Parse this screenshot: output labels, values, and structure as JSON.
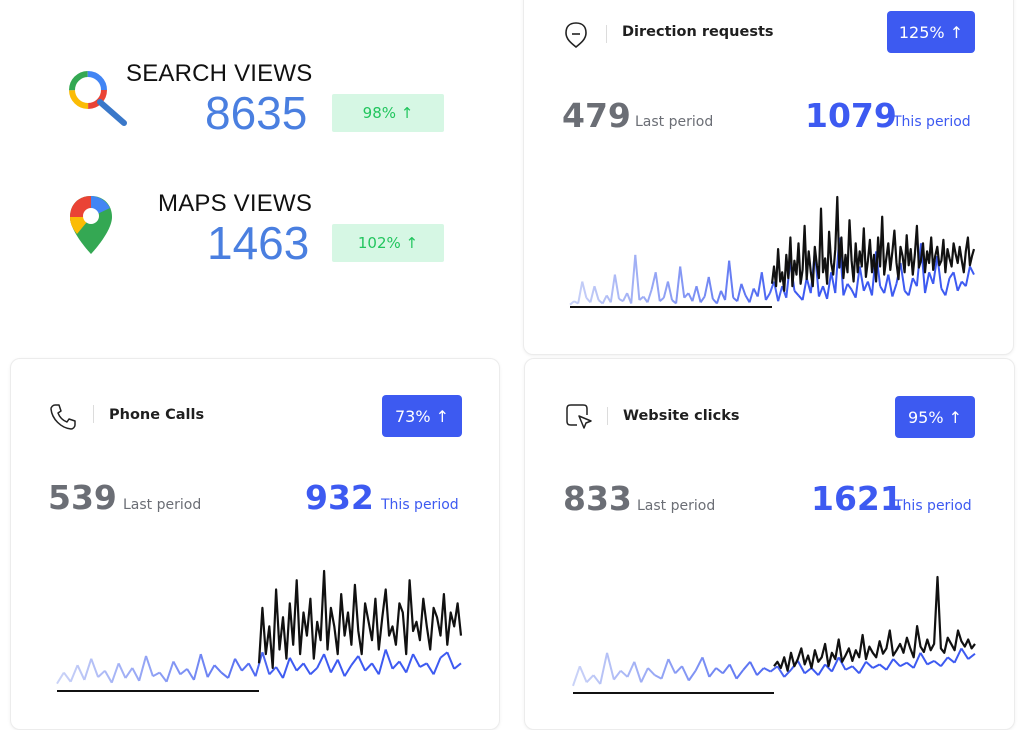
{
  "summary": {
    "search": {
      "label": "SEARCH VIEWS",
      "value": "8635",
      "change": "98% ↑",
      "icon": "google-search-icon"
    },
    "maps": {
      "label": "MAPS VIEWS",
      "value": "1463",
      "change": "102% ↑",
      "icon": "google-maps-pin-icon"
    }
  },
  "cards": {
    "direction": {
      "title": "Direction requests",
      "change": "125% ↑",
      "last_value": "479",
      "last_label": "Last period",
      "this_value": "1079",
      "this_label": "This period",
      "icon": "direction-sign-icon"
    },
    "phone": {
      "title": "Phone Calls",
      "change": "73% ↑",
      "last_value": "539",
      "last_label": "Last period",
      "this_value": "932",
      "this_label": "This period",
      "icon": "phone-icon"
    },
    "website": {
      "title": "Website clicks",
      "change": "95% ↑",
      "last_value": "833",
      "last_label": "Last period",
      "this_value": "1621",
      "this_label": "This period",
      "icon": "cursor-click-icon"
    }
  },
  "colors": {
    "accent": "#3d5af1",
    "muted": "#6b6e75",
    "positive_bg": "#d6f7e4",
    "positive_text": "#22c55e",
    "metric_value": "#4a7fe0",
    "last_period_series": "#c9d2f7",
    "this_period_series": "#111111"
  },
  "chart_data": [
    {
      "type": "line",
      "series": [
        {
          "values": [
            2,
            5,
            3,
            22,
            8,
            4,
            18,
            6,
            3,
            10,
            4,
            28,
            7,
            5,
            12,
            3,
            45,
            6,
            9,
            4,
            15,
            30,
            5,
            8,
            22,
            6,
            3,
            35,
            8,
            12,
            5,
            18,
            4,
            9,
            26,
            7,
            3,
            14,
            6,
            40,
            8,
            5,
            20,
            10,
            4,
            16,
            9,
            30,
            6,
            12,
            22,
            5,
            18,
            8,
            40,
            14,
            10,
            6,
            25,
            12,
            48,
            9,
            18,
            7,
            30,
            12,
            60,
            10,
            20,
            15,
            8,
            35,
            14,
            22,
            10,
            48,
            18,
            12,
            28,
            9,
            20,
            38,
            14,
            10,
            25,
            18,
            55,
            12,
            30,
            20,
            44,
            16,
            10,
            25,
            30,
            14,
            22,
            18,
            35,
            28
          ]
        },
        {
          "values": [
            20,
            35,
            18,
            50,
            22,
            30,
            14,
            45,
            25,
            60,
            18,
            40,
            28,
            55,
            20,
            32,
            70,
            24,
            48,
            30,
            18,
            52,
            36,
            25,
            85,
            30,
            42,
            20,
            65,
            38,
            28,
            50,
            95,
            34,
            60,
            25,
            45,
            30,
            75,
            40,
            22,
            55,
            30,
            48,
            35,
            68,
            26,
            40,
            58,
            30,
            45,
            22,
            60,
            35,
            78,
            28,
            42,
            55,
            32,
            48,
            66,
            38,
            24,
            52,
            44,
            30,
            62,
            36,
            50,
            28,
            45,
            70,
            34,
            40,
            55,
            30,
            48,
            38,
            60,
            32,
            44,
            52,
            36,
            40,
            58,
            30,
            50,
            42,
            35,
            55,
            46,
            38,
            52,
            40,
            30,
            48,
            60,
            36,
            44,
            50
          ]
        }
      ]
    },
    {
      "type": "line",
      "series": [
        {
          "values": [
            8,
            20,
            10,
            28,
            12,
            35,
            15,
            22,
            9,
            30,
            14,
            25,
            11,
            38,
            16,
            20,
            10,
            32,
            18,
            24,
            12,
            40,
            15,
            28,
            20,
            14,
            35,
            22,
            30,
            16,
            42,
            18,
            26,
            14,
            36,
            22,
            30,
            18,
            25,
            40,
            20,
            34,
            16,
            28,
            38,
            22,
            30,
            18,
            45,
            24,
            32,
            20,
            40,
            26,
            30,
            18,
            36,
            42,
            24,
            30
          ]
        },
        {
          "values": [
            30,
            90,
            40,
            70,
            25,
            110,
            45,
            80,
            35,
            95,
            50,
            120,
            40,
            85,
            60,
            100,
            35,
            75,
            55,
            130,
            45,
            90,
            70,
            40,
            105,
            60,
            85,
            50,
            115,
            65,
            40,
            95,
            75,
            55,
            100,
            45,
            80,
            110,
            60,
            70,
            50,
            95,
            85,
            40,
            120,
            65,
            75,
            55,
            100,
            70,
            45,
            90,
            80,
            60,
            105,
            50,
            85,
            70,
            95,
            60
          ]
        }
      ]
    },
    {
      "type": "line",
      "series": [
        {
          "values": [
            8,
            30,
            12,
            20,
            10,
            45,
            15,
            25,
            18,
            35,
            12,
            28,
            20,
            16,
            38,
            22,
            30,
            14,
            25,
            40,
            18,
            28,
            22,
            32,
            16,
            26,
            35,
            20,
            28,
            24,
            30,
            18,
            26,
            36,
            22,
            28,
            20,
            32,
            24,
            40,
            26,
            30,
            22,
            35,
            28,
            32,
            26,
            38,
            30,
            34,
            28,
            45,
            32,
            36,
            30,
            40,
            34,
            50,
            38,
            44
          ]
        },
        {
          "values": [
            30,
            35,
            28,
            40,
            25,
            45,
            30,
            38,
            50,
            32,
            42,
            28,
            48,
            35,
            40,
            55,
            30,
            45,
            38,
            60,
            35,
            42,
            50,
            36,
            48,
            40,
            65,
            38,
            52,
            45,
            40,
            58,
            44,
            50,
            70,
            42,
            48,
            55,
            45,
            62,
            50,
            40,
            75,
            52,
            46,
            60,
            48,
            55,
            130,
            50,
            45,
            62,
            55,
            48,
            70,
            58,
            52,
            60,
            50,
            55
          ]
        }
      ]
    }
  ]
}
